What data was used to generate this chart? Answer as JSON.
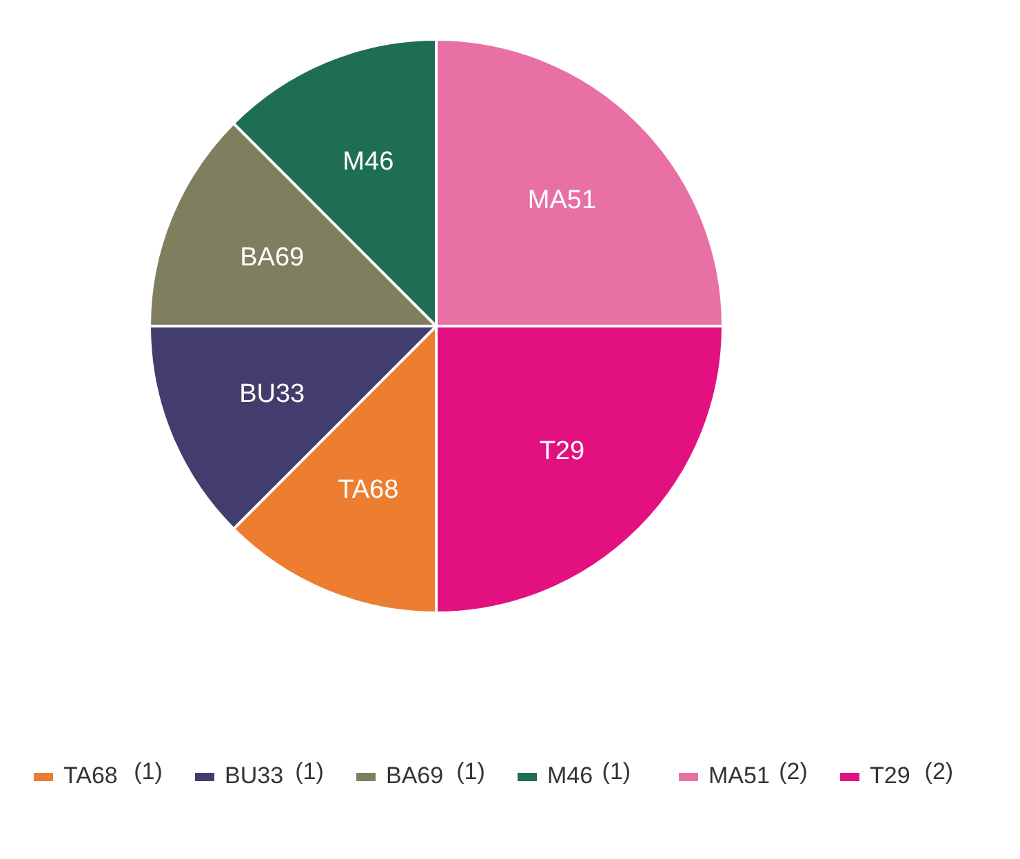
{
  "chart_data": {
    "type": "pie",
    "categories": [
      "TA68",
      "BU33",
      "BA69",
      "M46",
      "MA51",
      "T29"
    ],
    "values": [
      1,
      1,
      1,
      1,
      2,
      2
    ],
    "value_labels": [
      "(1)",
      "(1)",
      "(1)",
      "(1)",
      "(2)",
      "(2)"
    ],
    "colors": [
      "#ed7d31",
      "#433d6e",
      "#7f7f5f",
      "#1e6e55",
      "#e870a4",
      "#e3117f"
    ],
    "legend": "bottom"
  }
}
